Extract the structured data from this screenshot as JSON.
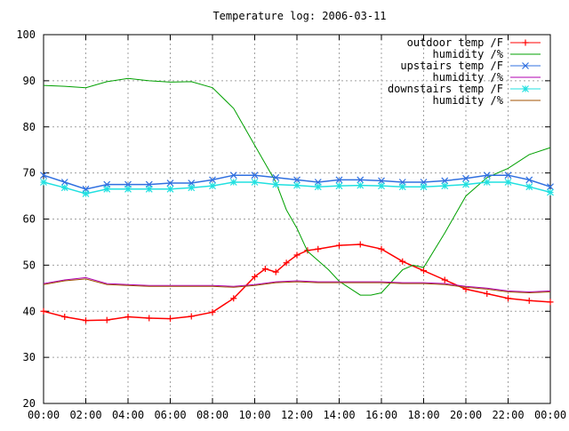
{
  "chart_data": {
    "type": "line",
    "title": "Temperature log: 2006-03-11",
    "xlabel": "",
    "ylabel": "",
    "xlim": [
      0,
      24
    ],
    "ylim": [
      20,
      100
    ],
    "x_ticks": [
      "00:00",
      "02:00",
      "04:00",
      "06:00",
      "08:00",
      "10:00",
      "12:00",
      "14:00",
      "16:00",
      "18:00",
      "20:00",
      "22:00",
      "00:00"
    ],
    "y_ticks": [
      "20",
      "30",
      "40",
      "50",
      "60",
      "70",
      "80",
      "90",
      "100"
    ],
    "grid": true,
    "legend_position": "top-right",
    "series": [
      {
        "name": "outdoor temp /F",
        "color": "#ff0000",
        "marker": "plus",
        "x": [
          0,
          1,
          2,
          3,
          4,
          5,
          6,
          7,
          8,
          9,
          10,
          10.5,
          11,
          11.5,
          12,
          12.5,
          13,
          14,
          15,
          16,
          17,
          18,
          19,
          20,
          21,
          22,
          23,
          24
        ],
        "y": [
          40,
          38.8,
          38,
          38.1,
          38.8,
          38.5,
          38.4,
          38.9,
          39.8,
          42.8,
          47.5,
          49.2,
          48.5,
          50.5,
          52.2,
          53.2,
          53.5,
          54.3,
          54.5,
          53.5,
          50.8,
          48.8,
          46.8,
          44.8,
          43.8,
          42.8,
          42.3,
          42
        ]
      },
      {
        "name": "humidity /%",
        "color": "#00a000",
        "marker": "none",
        "x": [
          0,
          1,
          2,
          3,
          4,
          5,
          6,
          7,
          8,
          9,
          10,
          10.5,
          11,
          11.5,
          12,
          12.5,
          13,
          13.5,
          14,
          14.5,
          15,
          15.5,
          16,
          16.5,
          17,
          17.5,
          18,
          19,
          20,
          21,
          22,
          23,
          24
        ],
        "y": [
          89,
          88.8,
          88.5,
          89.8,
          90.5,
          90,
          89.7,
          89.8,
          88.5,
          84,
          76,
          72,
          68,
          62,
          58,
          53,
          51,
          49,
          46.5,
          45,
          43.5,
          43.5,
          44,
          46.5,
          49,
          50,
          49.5,
          57,
          65,
          69,
          71,
          74,
          75.5
        ]
      },
      {
        "name": "upstairs temp /F",
        "color": "#3070e0",
        "marker": "cross",
        "x": [
          0,
          1,
          2,
          3,
          4,
          5,
          6,
          7,
          8,
          9,
          10,
          11,
          12,
          13,
          14,
          15,
          16,
          17,
          18,
          19,
          20,
          21,
          22,
          23,
          24
        ],
        "y": [
          69.5,
          68,
          66.5,
          67.5,
          67.5,
          67.5,
          67.8,
          67.8,
          68.5,
          69.5,
          69.5,
          69,
          68.5,
          68,
          68.5,
          68.5,
          68.3,
          68,
          68,
          68.3,
          68.8,
          69.5,
          69.5,
          68.5,
          67
        ]
      },
      {
        "name": "humidity /%",
        "color": "#b000b0",
        "marker": "none",
        "x": [
          0,
          1,
          2,
          3,
          4,
          5,
          6,
          7,
          8,
          9,
          10,
          11,
          12,
          13,
          14,
          15,
          16,
          17,
          18,
          19,
          20,
          21,
          22,
          23,
          24
        ],
        "y": [
          46,
          46.8,
          47.3,
          46,
          45.8,
          45.6,
          45.6,
          45.6,
          45.6,
          45.4,
          45.8,
          46.4,
          46.6,
          46.4,
          46.4,
          46.4,
          46.4,
          46.2,
          46.2,
          46,
          45.4,
          45,
          44.4,
          44.2,
          44.4
        ]
      },
      {
        "name": "downstairs temp /F",
        "color": "#20e0e0",
        "marker": "star",
        "x": [
          0,
          1,
          2,
          3,
          4,
          5,
          6,
          7,
          8,
          9,
          10,
          11,
          12,
          13,
          14,
          15,
          16,
          17,
          18,
          19,
          20,
          21,
          22,
          23,
          24
        ],
        "y": [
          68,
          66.8,
          65.5,
          66.5,
          66.5,
          66.5,
          66.5,
          66.8,
          67.2,
          68,
          68,
          67.5,
          67.3,
          67,
          67.2,
          67.3,
          67.2,
          67,
          67,
          67.2,
          67.5,
          68,
          68,
          67,
          65.8
        ]
      },
      {
        "name": "humidity /%",
        "color": "#a05000",
        "marker": "none",
        "x": [
          0,
          1,
          2,
          3,
          4,
          5,
          6,
          7,
          8,
          9,
          10,
          11,
          12,
          13,
          14,
          15,
          16,
          17,
          18,
          19,
          20,
          21,
          22,
          23,
          24
        ],
        "y": [
          45.8,
          46.6,
          47,
          45.8,
          45.6,
          45.4,
          45.4,
          45.4,
          45.4,
          45.2,
          45.6,
          46.2,
          46.4,
          46.2,
          46.2,
          46.2,
          46.2,
          46,
          46,
          45.8,
          45.2,
          44.8,
          44.2,
          44,
          44.2
        ]
      }
    ]
  }
}
